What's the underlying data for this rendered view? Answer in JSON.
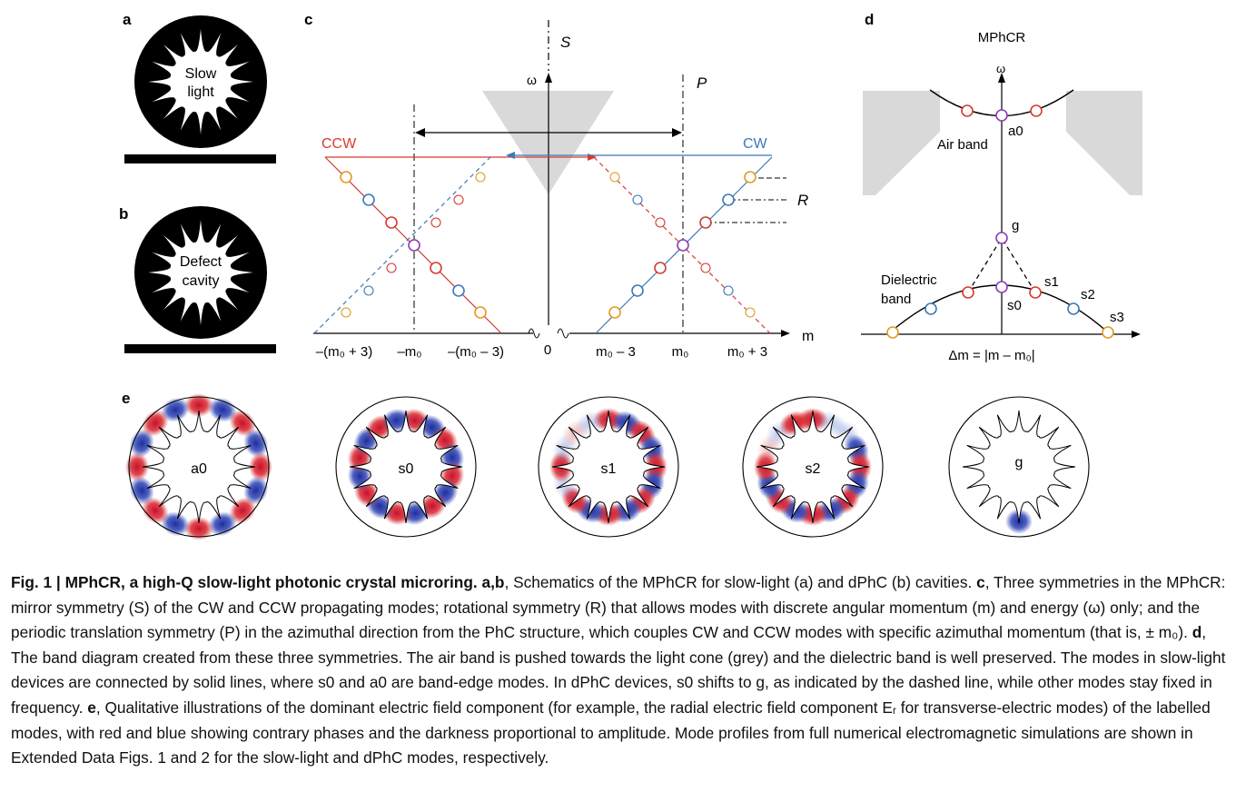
{
  "figure": {
    "panels": {
      "a": "a",
      "b": "b",
      "c": "c",
      "d": "d",
      "e": "e"
    },
    "panel_a": {
      "label_line1": "Slow",
      "label_line2": "light"
    },
    "panel_b": {
      "label_line1": "Defect",
      "label_line2": "cavity"
    },
    "panel_c": {
      "symmetry_s": "S",
      "symmetry_p": "P",
      "symmetry_r": "R",
      "omega": "ω",
      "axis_m": "m",
      "ccw": "CCW",
      "cw": "CW",
      "ticks": [
        "–(m₀ + 3)",
        "–m₀",
        "–(m₀ – 3)",
        "0",
        "m₀ – 3",
        "m₀",
        "m₀ + 3"
      ],
      "colors": {
        "ccw": "#d63a2f",
        "cw": "#3d78b8",
        "orange": "#e39a1f",
        "purple": "#8a3fb0",
        "grey": "#d9d9d9"
      }
    },
    "panel_d": {
      "title": "MPhCR",
      "omega": "ω",
      "air_band": "Air band",
      "dielectric_band_line1": "Dielectric",
      "dielectric_band_line2": "band",
      "modes": {
        "a0": "a0",
        "g": "g",
        "s0": "s0",
        "s1": "s1",
        "s2": "s2",
        "s3": "s3"
      },
      "xlabel": "Δm = |m – m₀|"
    },
    "panel_e": {
      "modes": [
        "a0",
        "s0",
        "s1",
        "s2",
        "g"
      ]
    }
  },
  "caption": {
    "lead": "Fig. 1 | MPhCR, a high-Q slow-light photonic crystal microring.",
    "part_ab_label": "a,b",
    "part_ab": ", Schematics of the MPhCR for slow-light (a) and dPhC (b) cavities.",
    "part_c_label": "c",
    "part_c": ", Three symmetries in the MPhCR: mirror symmetry (S) of the CW and CCW propagating modes; rotational symmetry (R) that allows modes with discrete angular momentum (m) and energy (ω) only; and the periodic translation symmetry (P) in the azimuthal direction from the PhC structure, which couples CW and CCW modes with specific azimuthal momentum (that is, ± m₀).",
    "part_d_label": "d",
    "part_d": ", The band diagram created from these three symmetries. The air band is pushed towards the light cone (grey) and the dielectric band is well preserved. The modes in slow-light devices are connected by solid lines, where s0 and a0 are band-edge modes. In dPhC devices, s0 shifts to g, as indicated by the dashed line, while other modes stay fixed in frequency.",
    "part_e_label": "e",
    "part_e": ", Qualitative illustrations of the dominant electric field component (for example, the radial electric field component Eᵣ for transverse-electric modes) of the labelled modes, with red and blue showing contrary phases and the darkness proportional to amplitude. Mode profiles from full numerical electromagnetic simulations are shown in Extended Data Figs. 1 and 2 for the slow-light and dPhC modes, respectively."
  }
}
